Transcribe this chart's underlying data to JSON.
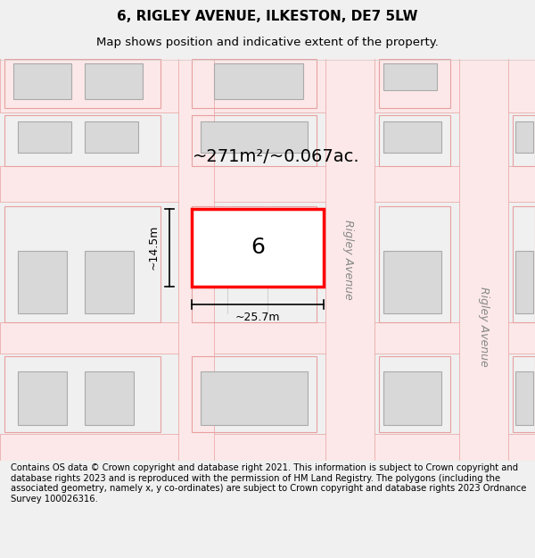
{
  "title": "6, RIGLEY AVENUE, ILKESTON, DE7 5LW",
  "subtitle": "Map shows position and indicative extent of the property.",
  "footer": "Contains OS data © Crown copyright and database right 2021. This information is subject to Crown copyright and database rights 2023 and is reproduced with the permission of HM Land Registry. The polygons (including the associated geometry, namely x, y co-ordinates) are subject to Crown copyright and database rights 2023 Ordnance Survey 100026316.",
  "bg_color": "#f5f5f5",
  "map_bg": "#ffffff",
  "road_color": "#f5c4c4",
  "road_border_color": "#e08080",
  "building_fill": "#d8d8d8",
  "building_edge": "#aaaaaa",
  "plot_fill": "#ffffff",
  "plot_edge": "#ff0000",
  "plot_edge_width": 2.5,
  "area_text": "~271m²/~0.067ac.",
  "width_label": "~25.7m",
  "height_label": "~14.5m",
  "label_number": "6",
  "road_label": "Rigley Avenue",
  "title_fontsize": 11,
  "subtitle_fontsize": 9.5
}
